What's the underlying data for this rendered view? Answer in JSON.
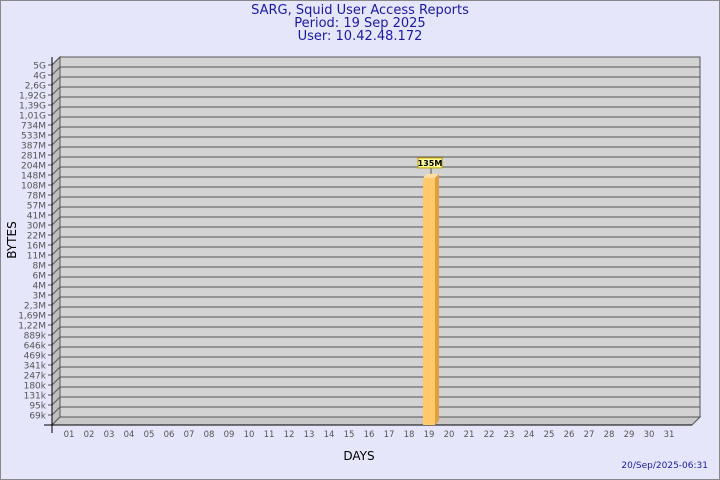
{
  "chart_data": {
    "type": "bar",
    "title": "SARG, Squid User Access Reports",
    "subtitle": [
      "Period: 19 Sep 2025",
      "User: 10.42.48.172"
    ],
    "xlabel": "DAYS",
    "ylabel": "BYTES",
    "y_scale": "log",
    "y_tick_labels": [
      "5G",
      "4G",
      "2,6G",
      "1,92G",
      "1,39G",
      "1,01G",
      "734M",
      "533M",
      "387M",
      "281M",
      "204M",
      "148M",
      "108M",
      "78M",
      "57M",
      "41M",
      "30M",
      "22M",
      "16M",
      "11M",
      "8M",
      "6M",
      "4M",
      "3M",
      "2,3M",
      "1,69M",
      "1,22M",
      "889k",
      "646k",
      "469k",
      "341k",
      "247k",
      "180k",
      "131k",
      "95k",
      "69k"
    ],
    "categories": [
      "01",
      "02",
      "03",
      "04",
      "05",
      "06",
      "07",
      "08",
      "09",
      "10",
      "11",
      "12",
      "13",
      "14",
      "15",
      "16",
      "17",
      "18",
      "19",
      "20",
      "21",
      "22",
      "23",
      "24",
      "25",
      "26",
      "27",
      "28",
      "29",
      "30",
      "31"
    ],
    "values": [
      {
        "day": "19",
        "value": 135000000,
        "label": "135M"
      }
    ],
    "grid": true,
    "colors": {
      "bar": "#ffc869",
      "bar_side": "#e0a040",
      "wall": "#d3d3d3",
      "title": "#1a1aa0"
    }
  },
  "footer": {
    "timestamp": "20/Sep/2025-06:31"
  }
}
